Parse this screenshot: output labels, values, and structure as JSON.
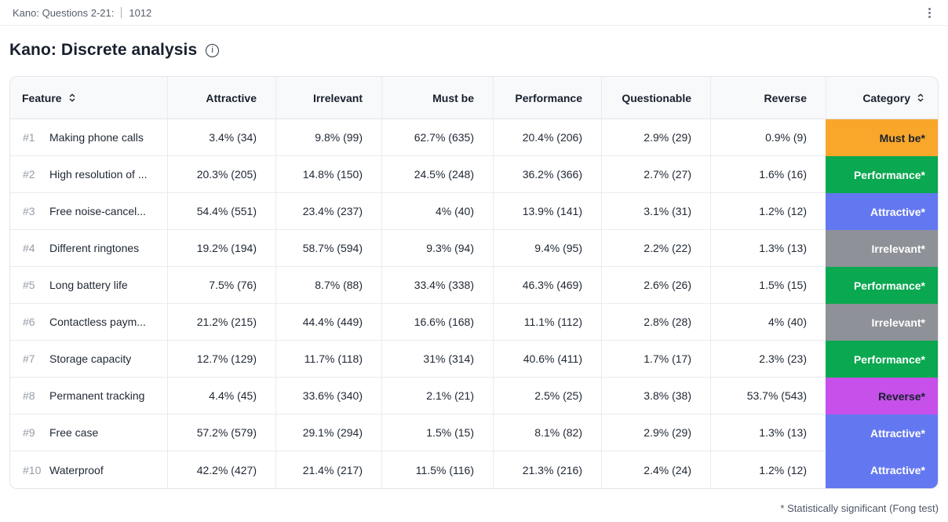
{
  "topbar": {
    "breadcrumb": "Kano: Questions 2-21:",
    "respondent_count": "1012"
  },
  "page": {
    "title": "Kano: Discrete analysis"
  },
  "table": {
    "columns": [
      {
        "key": "feature",
        "label": "Feature",
        "sortable": true,
        "align": "left"
      },
      {
        "key": "attractive",
        "label": "Attractive",
        "sortable": false,
        "align": "right"
      },
      {
        "key": "irrelevant",
        "label": "Irrelevant",
        "sortable": false,
        "align": "right"
      },
      {
        "key": "must_be",
        "label": "Must be",
        "sortable": false,
        "align": "right"
      },
      {
        "key": "performance",
        "label": "Performance",
        "sortable": false,
        "align": "right"
      },
      {
        "key": "questionable",
        "label": "Questionable",
        "sortable": false,
        "align": "right"
      },
      {
        "key": "reverse",
        "label": "Reverse",
        "sortable": false,
        "align": "right"
      },
      {
        "key": "category",
        "label": "Category",
        "sortable": true,
        "align": "right"
      }
    ],
    "rows": [
      {
        "index": "#1",
        "feature": "Making phone calls",
        "attractive": "3.4% (34)",
        "irrelevant": "9.8% (99)",
        "must_be": "62.7% (635)",
        "performance": "20.4% (206)",
        "questionable": "2.9% (29)",
        "reverse": "0.9% (9)",
        "category": "Must be*",
        "category_type": "must-be"
      },
      {
        "index": "#2",
        "feature": "High resolution of ...",
        "attractive": "20.3% (205)",
        "irrelevant": "14.8% (150)",
        "must_be": "24.5% (248)",
        "performance": "36.2% (366)",
        "questionable": "2.7% (27)",
        "reverse": "1.6% (16)",
        "category": "Performance*",
        "category_type": "performance"
      },
      {
        "index": "#3",
        "feature": "Free noise-cancel...",
        "attractive": "54.4% (551)",
        "irrelevant": "23.4% (237)",
        "must_be": "4% (40)",
        "performance": "13.9% (141)",
        "questionable": "3.1% (31)",
        "reverse": "1.2% (12)",
        "category": "Attractive*",
        "category_type": "attractive"
      },
      {
        "index": "#4",
        "feature": "Different ringtones",
        "attractive": "19.2% (194)",
        "irrelevant": "58.7% (594)",
        "must_be": "9.3% (94)",
        "performance": "9.4% (95)",
        "questionable": "2.2% (22)",
        "reverse": "1.3% (13)",
        "category": "Irrelevant*",
        "category_type": "irrelevant"
      },
      {
        "index": "#5",
        "feature": "Long battery life",
        "attractive": "7.5% (76)",
        "irrelevant": "8.7% (88)",
        "must_be": "33.4% (338)",
        "performance": "46.3% (469)",
        "questionable": "2.6% (26)",
        "reverse": "1.5% (15)",
        "category": "Performance*",
        "category_type": "performance"
      },
      {
        "index": "#6",
        "feature": "Contactless paym...",
        "attractive": "21.2% (215)",
        "irrelevant": "44.4% (449)",
        "must_be": "16.6% (168)",
        "performance": "11.1% (112)",
        "questionable": "2.8% (28)",
        "reverse": "4% (40)",
        "category": "Irrelevant*",
        "category_type": "irrelevant"
      },
      {
        "index": "#7",
        "feature": "Storage capacity",
        "attractive": "12.7% (129)",
        "irrelevant": "11.7% (118)",
        "must_be": "31% (314)",
        "performance": "40.6% (411)",
        "questionable": "1.7% (17)",
        "reverse": "2.3% (23)",
        "category": "Performance*",
        "category_type": "performance"
      },
      {
        "index": "#8",
        "feature": "Permanent tracking",
        "attractive": "4.4% (45)",
        "irrelevant": "33.6% (340)",
        "must_be": "2.1% (21)",
        "performance": "2.5% (25)",
        "questionable": "3.8% (38)",
        "reverse": "53.7% (543)",
        "category": "Reverse*",
        "category_type": "reverse"
      },
      {
        "index": "#9",
        "feature": "Free case",
        "attractive": "57.2% (579)",
        "irrelevant": "29.1% (294)",
        "must_be": "1.5% (15)",
        "performance": "8.1% (82)",
        "questionable": "2.9% (29)",
        "reverse": "1.3% (13)",
        "category": "Attractive*",
        "category_type": "attractive"
      },
      {
        "index": "#10",
        "feature": "Waterproof",
        "attractive": "42.2% (427)",
        "irrelevant": "21.4% (217)",
        "must_be": "11.5% (116)",
        "performance": "21.3% (216)",
        "questionable": "2.4% (24)",
        "reverse": "1.2% (12)",
        "category": "Attractive*",
        "category_type": "attractive"
      }
    ]
  },
  "category_colors": {
    "must-be": {
      "bg": "#F8A72B",
      "text": "#18202E"
    },
    "performance": {
      "bg": "#0AA850",
      "text": "#FFFFFF"
    },
    "attractive": {
      "bg": "#6378F0",
      "text": "#FFFFFF"
    },
    "irrelevant": {
      "bg": "#8E9197",
      "text": "#FFFFFF"
    },
    "reverse": {
      "bg": "#C750EA",
      "text": "#18202E"
    }
  },
  "footnote": "* Statistically significant (Fong test)"
}
